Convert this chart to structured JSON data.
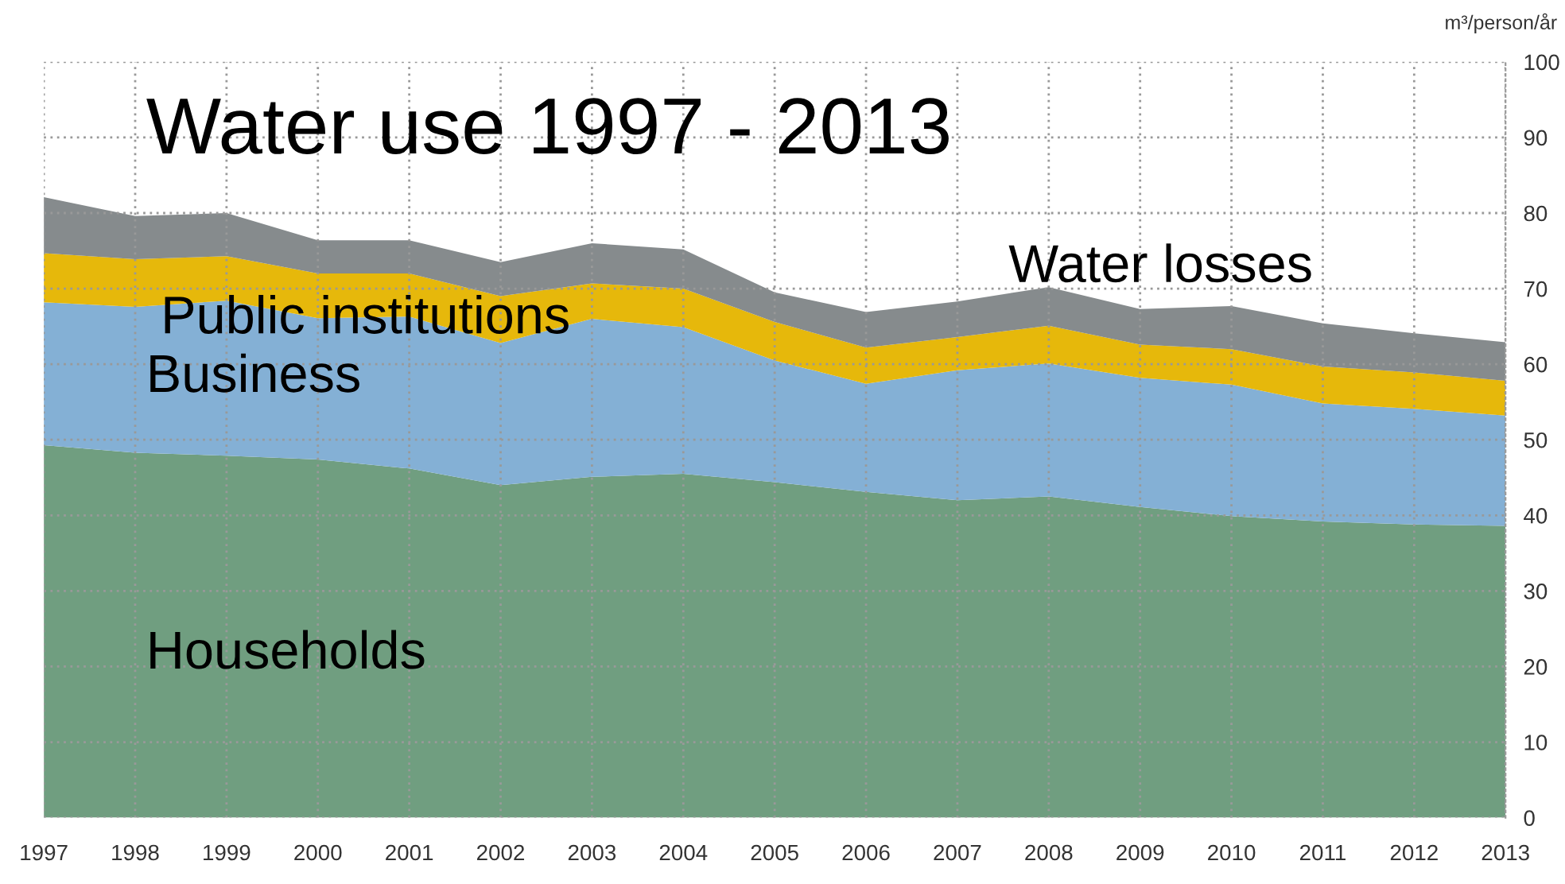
{
  "chart_data": {
    "type": "area",
    "stacked": true,
    "title": "Water use 1997 - 2013",
    "ylabel": "m³/person/år",
    "categories": [
      "1997",
      "1998",
      "1999",
      "2000",
      "2001",
      "2002",
      "2003",
      "2004",
      "2005",
      "2006",
      "2007",
      "2008",
      "2009",
      "2010",
      "2011",
      "2012",
      "2013"
    ],
    "series": [
      {
        "name": "Households",
        "color": "#709e80",
        "values": [
          49.3,
          48.3,
          47.9,
          47.4,
          46.2,
          44.0,
          45.1,
          45.5,
          44.4,
          43.1,
          42.0,
          42.5,
          41.1,
          39.9,
          39.2,
          38.8,
          38.6
        ]
      },
      {
        "name": "Business",
        "color": "#84b0d5",
        "values": [
          18.9,
          19.3,
          20.5,
          18.7,
          20.1,
          18.8,
          20.9,
          19.4,
          16.1,
          14.3,
          17.2,
          17.6,
          17.1,
          17.4,
          15.6,
          15.3,
          14.6
        ]
      },
      {
        "name": "Public institutions",
        "color": "#e6b80b",
        "values": [
          6.5,
          6.3,
          5.9,
          5.9,
          5.7,
          6.2,
          4.7,
          5.1,
          5.1,
          4.8,
          4.4,
          5.0,
          4.4,
          4.7,
          4.9,
          4.8,
          4.6
        ]
      },
      {
        "name": "Water losses",
        "color": "#868b8d",
        "values": [
          7.4,
          5.7,
          5.7,
          4.4,
          4.4,
          4.5,
          5.3,
          5.2,
          3.9,
          4.7,
          4.7,
          5.1,
          4.7,
          5.7,
          5.7,
          5.2,
          5.1
        ]
      }
    ],
    "ylim": [
      0,
      100
    ],
    "yticks": [
      0,
      10,
      20,
      30,
      40,
      50,
      60,
      70,
      80,
      90,
      100
    ],
    "grid": true,
    "legend": false
  }
}
